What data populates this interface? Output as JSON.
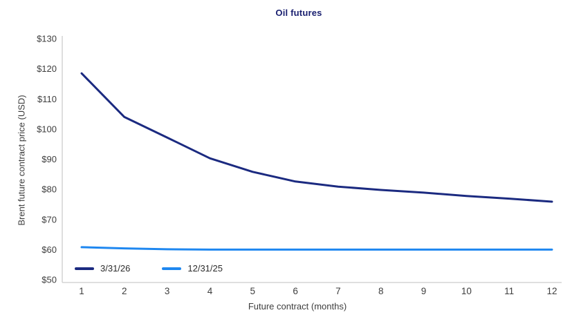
{
  "chart_data": {
    "type": "line",
    "title": "Oil futures",
    "xlabel": "Future contract (months)",
    "ylabel": "Brent future contract price (USD)",
    "x": [
      1,
      2,
      3,
      4,
      5,
      6,
      7,
      8,
      9,
      10,
      11,
      12
    ],
    "xlim": [
      1,
      12
    ],
    "ylim": [
      50,
      130
    ],
    "ytick_step": 10,
    "ytick_prefix": "$",
    "ytick_labels": [
      "$50",
      "$60",
      "$70",
      "$80",
      "$90",
      "$100",
      "$110",
      "$120",
      "$130"
    ],
    "xtick_labels": [
      "1",
      "2",
      "3",
      "4",
      "5",
      "6",
      "7",
      "8",
      "9",
      "10",
      "11",
      "12"
    ],
    "grid": false,
    "legend_position": "inside-bottom-left",
    "series": [
      {
        "name": "3/31/26",
        "color": "#1b2a80",
        "values": [
          118.5,
          104.0,
          97.2,
          90.3,
          85.8,
          82.6,
          80.9,
          79.8,
          78.9,
          77.8,
          76.9,
          75.9
        ]
      },
      {
        "name": "12/31/25",
        "color": "#1e87f0",
        "values": [
          60.8,
          60.4,
          60.1,
          60.0,
          60.0,
          60.0,
          60.0,
          60.0,
          60.0,
          60.0,
          60.0,
          60.0
        ]
      }
    ]
  },
  "colors": {
    "title_text": "#1a2070",
    "axis_text": "#3d3d3d",
    "axis_line": "#cccccc"
  }
}
